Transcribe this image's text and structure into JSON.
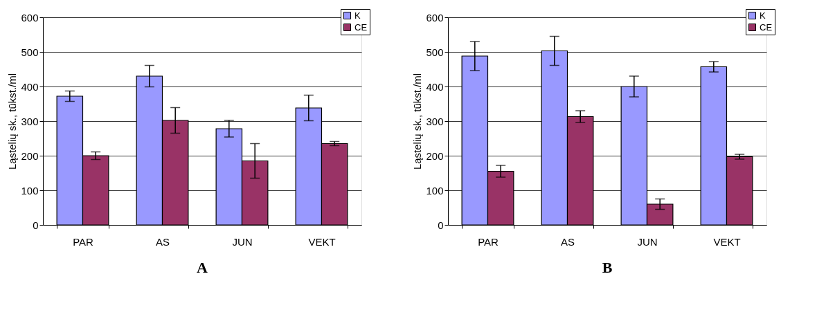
{
  "chart_data": [
    {
      "type": "bar",
      "title": "A",
      "ylabel": "Ląstelių sk., tūkst./ml",
      "categories": [
        "PAR",
        "AS",
        "JUN",
        "VEKT"
      ],
      "ylim": [
        0,
        600
      ],
      "yticks": [
        0,
        100,
        200,
        300,
        400,
        500,
        600
      ],
      "grid": "y",
      "legend": "top right",
      "series": [
        {
          "name": "K",
          "color": "#9999ff",
          "values": [
            372,
            430,
            278,
            338
          ],
          "errors": [
            15,
            31,
            24,
            37
          ]
        },
        {
          "name": "CE",
          "color": "#993366",
          "values": [
            200,
            302,
            185,
            235
          ],
          "errors": [
            11,
            37,
            50,
            6
          ]
        }
      ]
    },
    {
      "type": "bar",
      "title": "B",
      "ylabel": "Ląstelių sk., tūkst./ml",
      "categories": [
        "PAR",
        "AS",
        "JUN",
        "VEKT"
      ],
      "ylim": [
        0,
        600
      ],
      "yticks": [
        0,
        100,
        200,
        300,
        400,
        500,
        600
      ],
      "grid": "y",
      "legend": "top right",
      "series": [
        {
          "name": "K",
          "color": "#9999ff",
          "values": [
            488,
            503,
            400,
            457
          ],
          "errors": [
            42,
            42,
            30,
            15
          ]
        },
        {
          "name": "CE",
          "color": "#993366",
          "values": [
            155,
            313,
            60,
            197
          ],
          "errors": [
            17,
            17,
            15,
            7
          ]
        }
      ]
    }
  ]
}
